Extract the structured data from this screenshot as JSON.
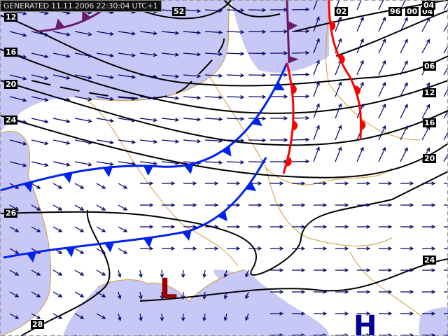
{
  "header": {
    "generated": "GENERATED 11.11.2006 22:30:04 UTC+1"
  },
  "isobar_labels": {
    "left": [
      "12",
      "16",
      "20",
      "24",
      "26"
    ],
    "right": [
      "06",
      "12",
      "16",
      "20",
      "24"
    ],
    "top": [
      "52",
      "02",
      "96",
      "00",
      "04",
      "04"
    ],
    "bottom": [
      "28"
    ]
  },
  "pressure_centers": {
    "low": {
      "label": "L",
      "color": "#990000"
    },
    "high": {
      "label": "H",
      "color": "#000099"
    }
  },
  "colors": {
    "shading": "#c8c8f6",
    "borders": "#d09a3a",
    "isobar": "#000000",
    "cold_front": "#0022ee",
    "warm_front": "#ff0000",
    "occluded_front": "#6a1a6a",
    "wind_arrow": "#000066"
  }
}
